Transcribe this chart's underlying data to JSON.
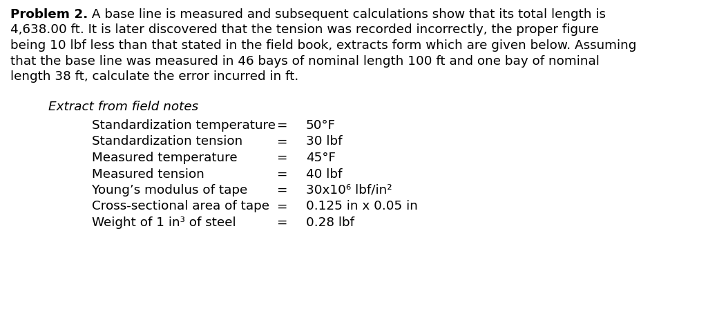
{
  "bg_color": "#ffffff",
  "bold_prefix": "Problem 2.",
  "para_lines": [
    " A base line is measured and subsequent calculations show that its total length is",
    "4,638.00 ft. It is later discovered that the tension was recorded incorrectly, the proper figure",
    "being 10 lbf less than that stated in the field book, extracts form which are given below. Assuming",
    "that the base line was measured in 46 bays of nominal length 100 ft and one bay of nominal",
    "length 38 ft, calculate the error incurred in ft."
  ],
  "section_title": "Extract from field notes",
  "rows": [
    {
      "label": "Standardization temperature",
      "eq": "=",
      "value": "50°F"
    },
    {
      "label": "Standardization tension",
      "eq": "=",
      "value": "30 lbf"
    },
    {
      "label": "Measured temperature",
      "eq": "=",
      "value": "45°F"
    },
    {
      "label": "Measured tension",
      "eq": "=",
      "value": "40 lbf"
    },
    {
      "label": "Young’s modulus of tape",
      "eq": "=",
      "value": "30x10⁶ lbf/in²"
    },
    {
      "label": "Cross-sectional area of tape",
      "eq": "=",
      "value": "0.125 in x 0.05 in"
    },
    {
      "label": "Weight of 1 in³ of steel",
      "eq": "=",
      "value": "0.28 lbf"
    }
  ],
  "font_family": "DejaVu Sans",
  "para_fontsize": 13.2,
  "section_fontsize": 13.2,
  "row_fontsize": 13.2,
  "text_color": "#000000",
  "fig_width": 10.38,
  "fig_height": 4.83,
  "dpi": 100
}
